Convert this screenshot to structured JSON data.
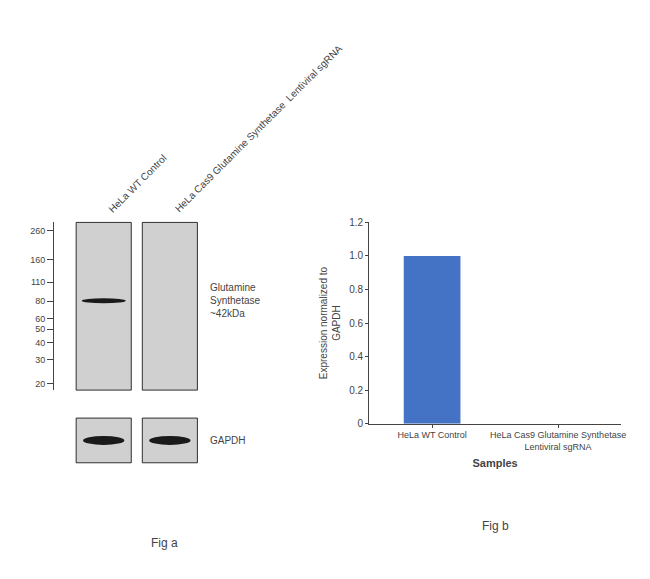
{
  "chart_data": [
    {
      "type": "blot",
      "categories": [
        "HeLa WT Control",
        "HeLa Cas9 Glutamine Synthetase  Lentiviral sgRNA"
      ],
      "log": "y",
      "ylim": [
        18,
        300
      ],
      "yticks": [
        260,
        160,
        110,
        80,
        60,
        50,
        40,
        30,
        20
      ],
      "annotations": [
        "Glutamine\nSynthetase\n~42kDa",
        "GAPDH"
      ],
      "caption": "Fig a",
      "color": "#1a1a1a",
      "gel_color": "#d0d0d0",
      "grid": false
    },
    {
      "type": "bar",
      "categories": [
        "HeLa WT Control",
        "HeLa Cas9 Glutamine Synthetase\nLentiviral sgRNA"
      ],
      "values": [
        1.0,
        0.0
      ],
      "color": "#4472c4",
      "ylim": [
        0,
        1.2
      ],
      "yticks": [
        0,
        0.2,
        0.4,
        0.6,
        0.8,
        {
          "value": 1.0,
          "label": "1.0"
        },
        1.2
      ],
      "ylabel": "Expression normalized to\nGAPDH",
      "xlabel": "Samples",
      "caption": "Fig b",
      "grid": false
    }
  ]
}
